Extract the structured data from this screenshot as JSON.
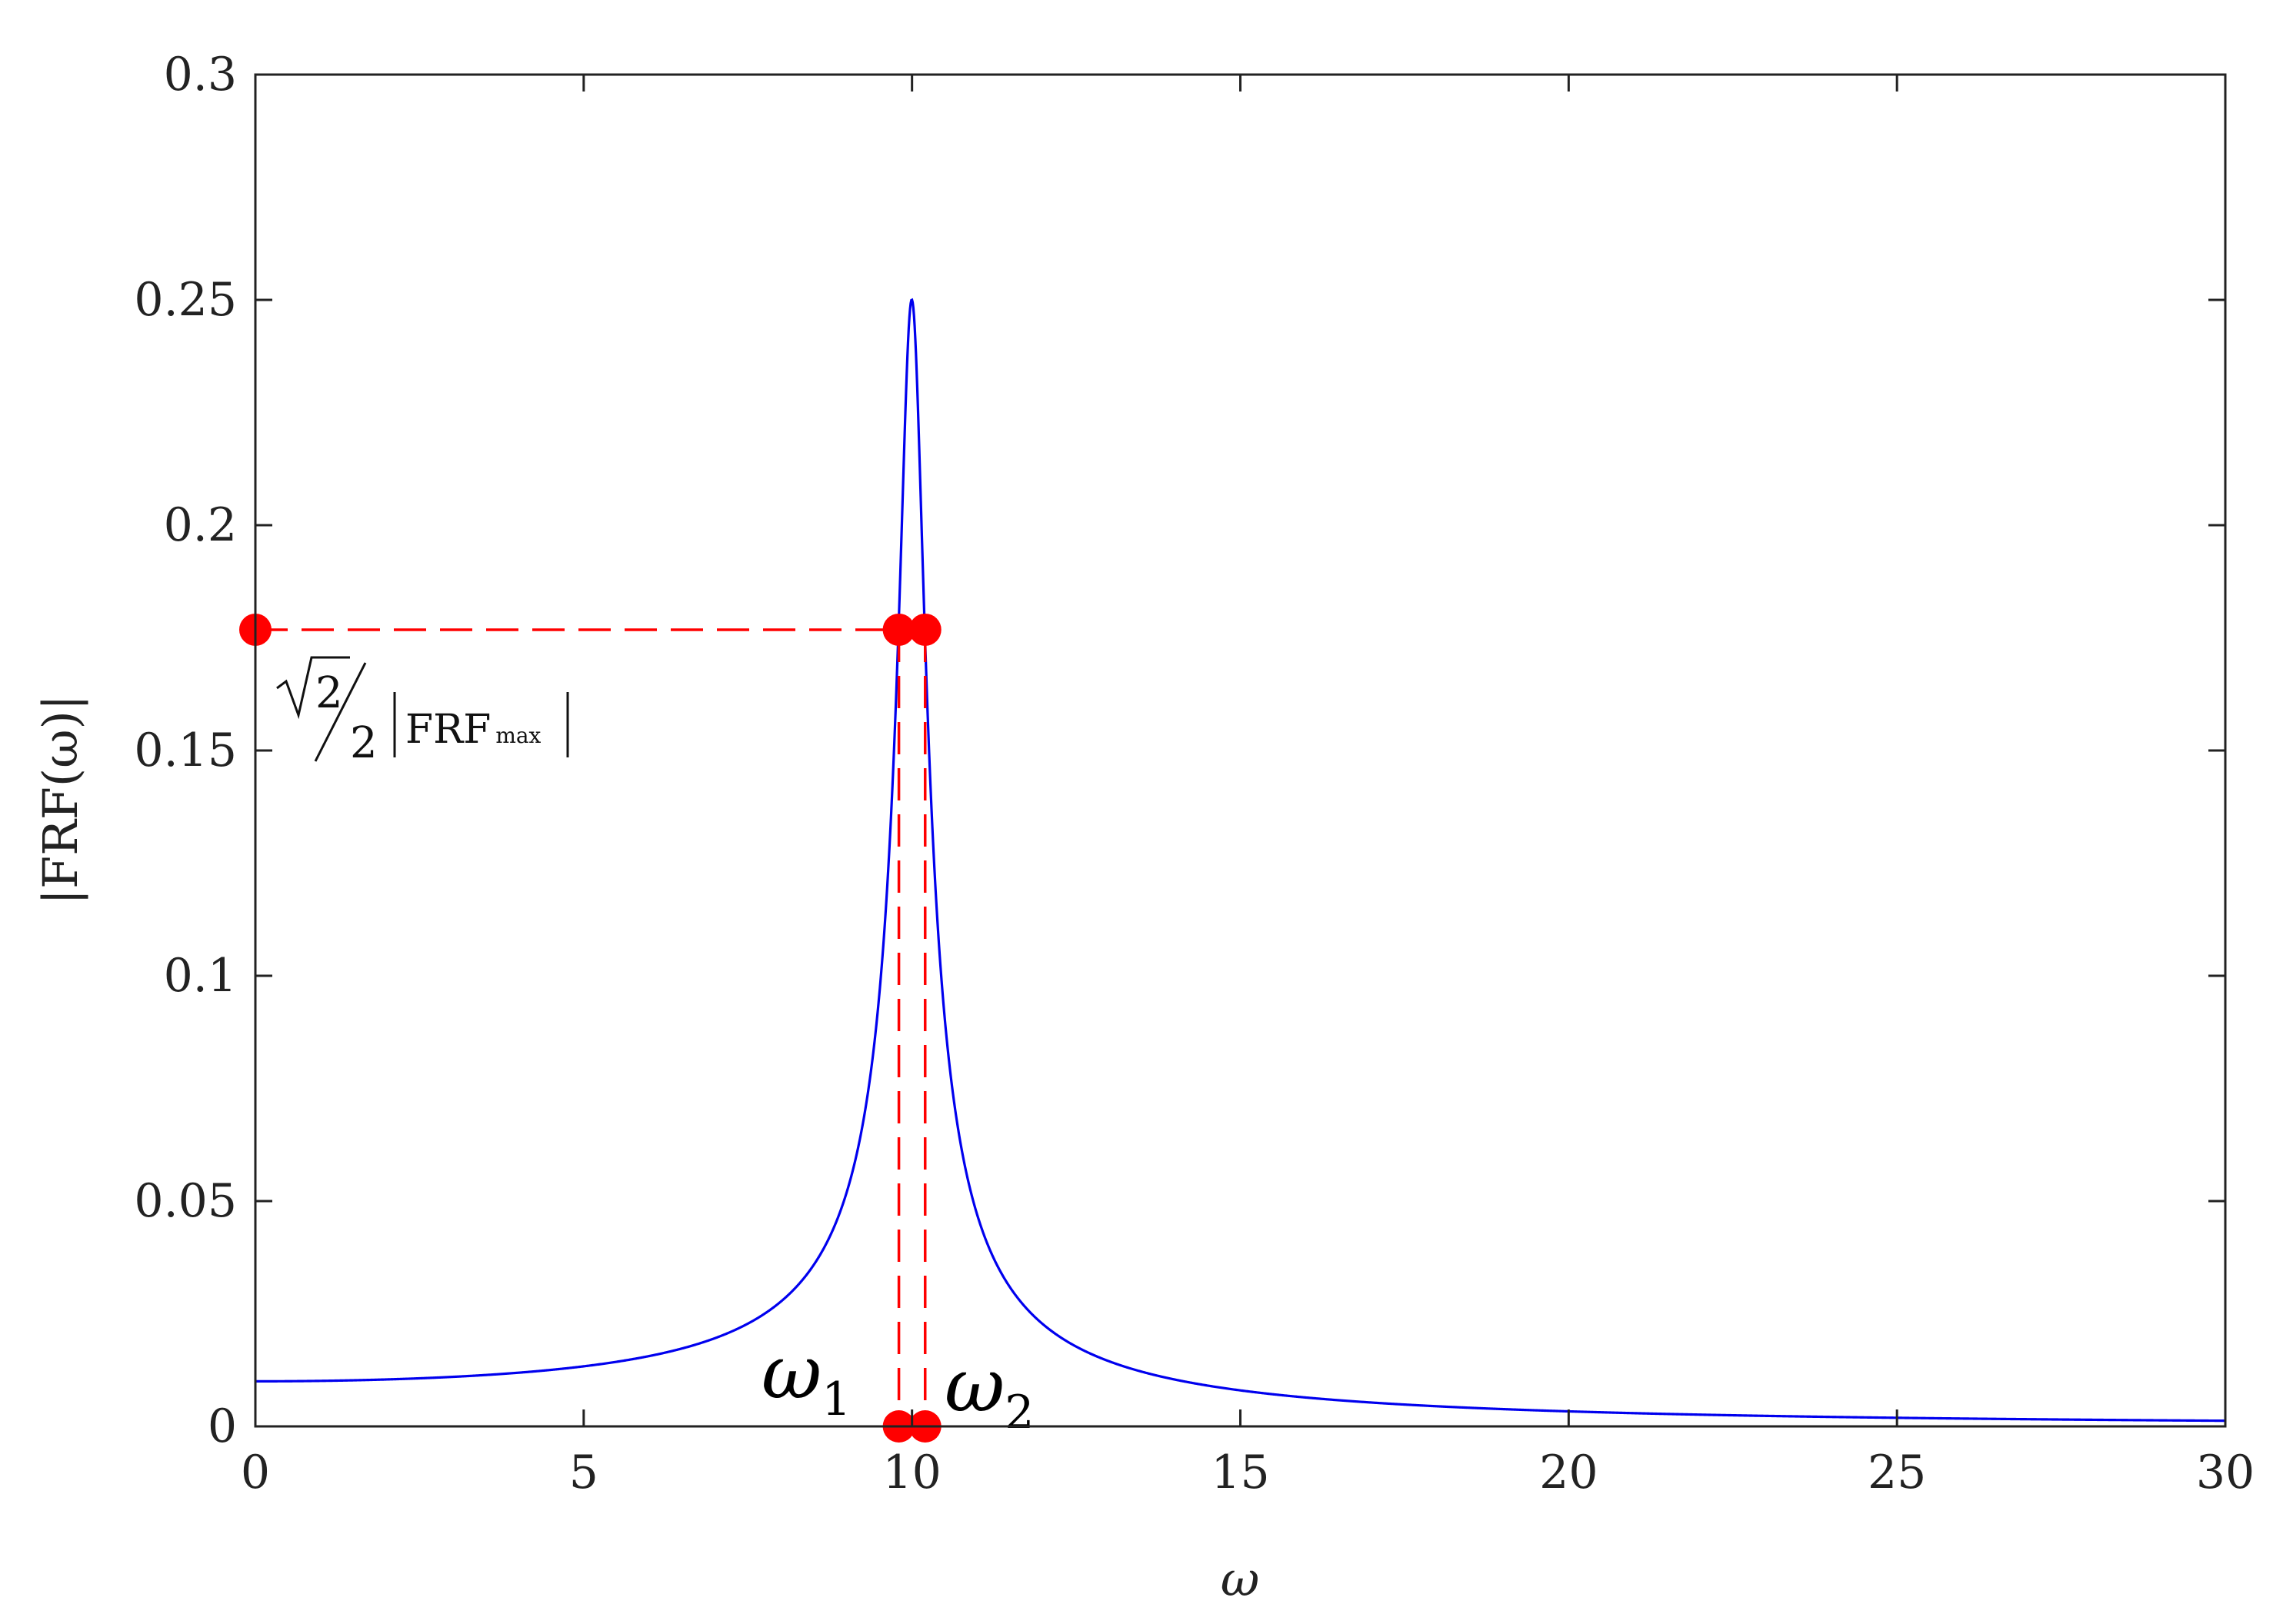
{
  "chart_data": {
    "type": "line",
    "title": "",
    "xlabel": "ω",
    "ylabel": "|FRF(ω)|",
    "xlim": [
      0,
      30
    ],
    "ylim": [
      0,
      0.3
    ],
    "x_ticks": [
      0,
      5,
      10,
      15,
      20,
      25,
      30
    ],
    "x_tick_labels": [
      "0",
      "5",
      "10",
      "15",
      "20",
      "25",
      "30"
    ],
    "y_ticks": [
      0,
      0.05,
      0.1,
      0.15,
      0.2,
      0.25,
      0.3
    ],
    "y_tick_labels": [
      "0",
      "0.05",
      "0.1",
      "0.15",
      "0.2",
      "0.25",
      "0.3"
    ],
    "grid": false,
    "series": [
      {
        "color": "#0000ee",
        "model": {
          "omega_n": 10,
          "zeta": 0.02,
          "k": 0.01
        },
        "x": [
          0,
          2,
          4,
          5,
          6,
          7,
          8,
          8.5,
          9,
          9.3,
          9.5,
          9.7,
          9.8,
          9.9,
          10,
          10.1,
          10.2,
          10.3,
          10.5,
          10.7,
          11,
          11.5,
          12,
          13,
          14,
          15,
          17,
          20,
          25,
          30
        ],
        "y": [
          0.01,
          0.0104,
          0.0119,
          0.0133,
          0.0156,
          0.0196,
          0.0277,
          0.0359,
          0.0524,
          0.0735,
          0.0976,
          0.1443,
          0.1767,
          0.2231,
          0.25,
          0.2212,
          0.1732,
          0.1405,
          0.0951,
          0.0688,
          0.0474,
          0.0309,
          0.0227,
          0.0145,
          0.0104,
          0.008,
          0.0053,
          0.0033,
          0.0019,
          0.0013
        ]
      }
    ],
    "annotations": {
      "half_power_level": 0.1768,
      "omega1": 9.8,
      "omega2": 10.2,
      "omega1_label": {
        "base": "ω",
        "sub": "1"
      },
      "omega2_label": {
        "base": "ω",
        "sub": "2"
      },
      "level_label": {
        "num": "2",
        "den": "2",
        "frf": "FRF",
        "sub": "max"
      },
      "color": "#ff0000"
    }
  }
}
